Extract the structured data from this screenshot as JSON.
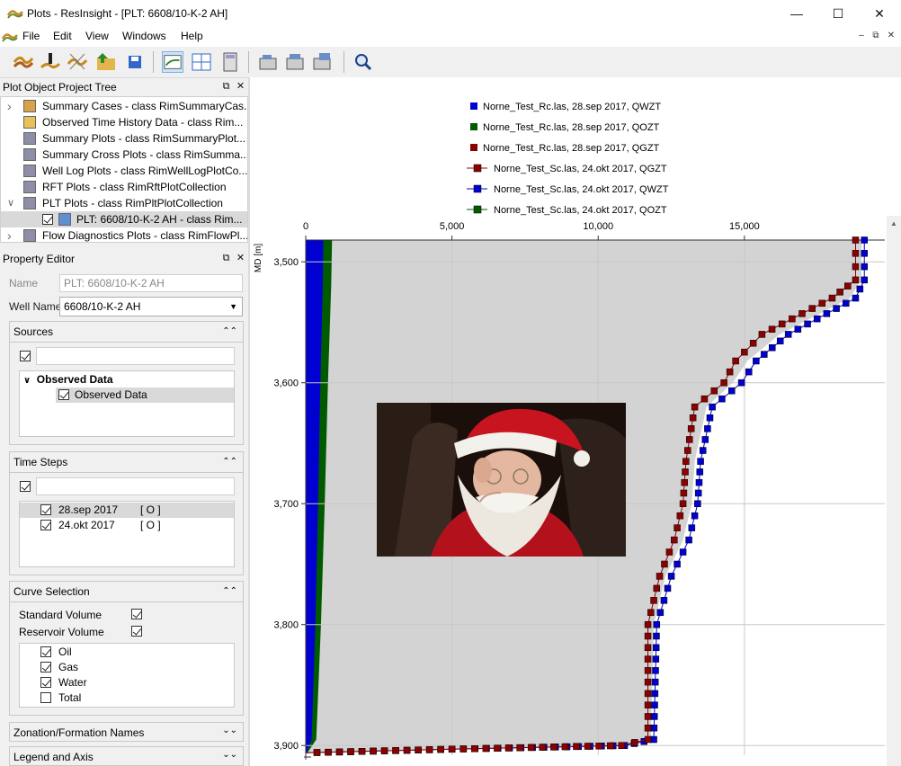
{
  "window": {
    "title": "Plots - ResInsight - [PLT: 6608/10-K-2 AH]"
  },
  "menu": {
    "items": [
      "File",
      "Edit",
      "View",
      "Windows",
      "Help"
    ]
  },
  "project_tree": {
    "title": "Plot Object Project Tree",
    "rows": [
      {
        "label": "Summary Cases - class RimSummaryCas...",
        "arrow": ">"
      },
      {
        "label": "Observed Time History Data - class Rim...",
        "arrow": ""
      },
      {
        "label": "Summary Plots - class RimSummaryPlot...",
        "arrow": ""
      },
      {
        "label": "Summary Cross Plots - class RimSumma...",
        "arrow": ""
      },
      {
        "label": "Well Log Plots - class RimWellLogPlotCo...",
        "arrow": ""
      },
      {
        "label": "RFT Plots - class RimRftPlotCollection",
        "arrow": ""
      },
      {
        "label": "PLT Plots - class RimPltPlotCollection",
        "arrow": "v"
      },
      {
        "label": "PLT: 6608/10-K-2 AH - class Rim...",
        "arrow": ""
      },
      {
        "label": "Flow Diagnostics Plots - class RimFlowPl...",
        "arrow": ">"
      }
    ]
  },
  "property_editor": {
    "title": "Property Editor",
    "name_label": "Name",
    "name_value": "PLT: 6608/10-K-2 AH",
    "well_label": "Well Name",
    "well_value": "6608/10-K-2 AH",
    "sources": {
      "title": "Sources",
      "filter": "",
      "group_label": "Observed Data",
      "item_label": "Observed Data"
    },
    "time_steps": {
      "title": "Time Steps",
      "filter": "",
      "items": [
        {
          "date": "28.sep 2017",
          "flag": "[ O ]"
        },
        {
          "date": "24.okt 2017",
          "flag": "[ O ]"
        }
      ]
    },
    "curve_selection": {
      "title": "Curve Selection",
      "standard_volume": "Standard Volume",
      "reservoir_volume": "Reservoir Volume",
      "phases": [
        {
          "label": "Oil",
          "checked": true
        },
        {
          "label": "Gas",
          "checked": true
        },
        {
          "label": "Water",
          "checked": true
        },
        {
          "label": "Total",
          "checked": false
        }
      ]
    },
    "zonation_title": "Zonation/Formation Names",
    "legend_title": "Legend and Axis"
  },
  "colors": {
    "qwzt": "#0000d0",
    "qozt": "#005a00",
    "qgzt": "#8b0000",
    "fill": "#d3d3d3"
  },
  "chart_data": {
    "type": "area",
    "legend": [
      {
        "label": "Norne_Test_Rc.las, 28.sep 2017, QWZT",
        "color": "#0000d0",
        "style": "fill"
      },
      {
        "label": "Norne_Test_Rc.las, 28.sep 2017, QOZT",
        "color": "#005a00",
        "style": "fill"
      },
      {
        "label": "Norne_Test_Rc.las, 28.sep 2017, QGZT",
        "color": "#8b0000",
        "style": "fill"
      },
      {
        "label": "Norne_Test_Sc.las, 24.okt 2017, QGZT",
        "color": "#8b0000",
        "style": "marker"
      },
      {
        "label": "Norne_Test_Sc.las, 24.okt 2017, QWZT",
        "color": "#0000d0",
        "style": "marker"
      },
      {
        "label": "Norne_Test_Sc.las, 24.okt 2017, QOZT",
        "color": "#005a00",
        "style": "marker"
      }
    ],
    "xlim": [
      0,
      19800
    ],
    "ylim": [
      3482,
      3908
    ],
    "x_ticks": [
      "0",
      "5,000",
      "10,000",
      "15,000"
    ],
    "x_tick_values": [
      0,
      5000,
      10000,
      15000
    ],
    "y_ticks": [
      "3,500",
      "3,600",
      "3,700",
      "3,800",
      "3,900"
    ],
    "y_tick_values": [
      3500,
      3600,
      3700,
      3800,
      3900
    ],
    "ylabel": "MD [m]",
    "water_band": [
      {
        "md": 3482,
        "v": 600
      },
      {
        "md": 3520,
        "v": 580
      },
      {
        "md": 3600,
        "v": 500
      },
      {
        "md": 3700,
        "v": 420
      },
      {
        "md": 3800,
        "v": 330
      },
      {
        "md": 3895,
        "v": 200
      },
      {
        "md": 3906,
        "v": 30
      }
    ],
    "oil_band": [
      {
        "md": 3482,
        "v": 900
      },
      {
        "md": 3520,
        "v": 870
      },
      {
        "md": 3600,
        "v": 760
      },
      {
        "md": 3700,
        "v": 650
      },
      {
        "md": 3800,
        "v": 520
      },
      {
        "md": 3895,
        "v": 360
      },
      {
        "md": 3906,
        "v": 60
      }
    ],
    "total_curve": [
      {
        "md": 3482,
        "v": 19000
      },
      {
        "md": 3515,
        "v": 19000
      },
      {
        "md": 3530,
        "v": 18600
      },
      {
        "md": 3560,
        "v": 16200
      },
      {
        "md": 3582,
        "v": 15100
      },
      {
        "md": 3600,
        "v": 14600
      },
      {
        "md": 3620,
        "v": 13700
      },
      {
        "md": 3665,
        "v": 13300
      },
      {
        "md": 3700,
        "v": 13200
      },
      {
        "md": 3730,
        "v": 12900
      },
      {
        "md": 3760,
        "v": 12300
      },
      {
        "md": 3800,
        "v": 11900
      },
      {
        "md": 3895,
        "v": 11800
      },
      {
        "md": 3900,
        "v": 10800
      },
      {
        "md": 3903,
        "v": 5000
      },
      {
        "md": 3906,
        "v": 0
      }
    ],
    "gas_marker_curve": [
      {
        "md": 3482,
        "v": 18800
      },
      {
        "md": 3515,
        "v": 18800
      },
      {
        "md": 3530,
        "v": 18000
      },
      {
        "md": 3560,
        "v": 15600
      },
      {
        "md": 3582,
        "v": 14700
      },
      {
        "md": 3600,
        "v": 14300
      },
      {
        "md": 3620,
        "v": 13300
      },
      {
        "md": 3665,
        "v": 13000
      },
      {
        "md": 3700,
        "v": 12900
      },
      {
        "md": 3730,
        "v": 12600
      },
      {
        "md": 3760,
        "v": 12100
      },
      {
        "md": 3800,
        "v": 11700
      },
      {
        "md": 3895,
        "v": 11700
      },
      {
        "md": 3900,
        "v": 10800
      },
      {
        "md": 3903,
        "v": 5000
      },
      {
        "md": 3906,
        "v": 0
      }
    ],
    "water_marker_curve": [
      {
        "md": 3482,
        "v": 19100
      },
      {
        "md": 3515,
        "v": 19100
      },
      {
        "md": 3530,
        "v": 18800
      },
      {
        "md": 3560,
        "v": 16500
      },
      {
        "md": 3582,
        "v": 15400
      },
      {
        "md": 3600,
        "v": 14900
      },
      {
        "md": 3620,
        "v": 13900
      },
      {
        "md": 3665,
        "v": 13500
      },
      {
        "md": 3700,
        "v": 13400
      },
      {
        "md": 3730,
        "v": 13100
      },
      {
        "md": 3760,
        "v": 12500
      },
      {
        "md": 3800,
        "v": 12000
      },
      {
        "md": 3895,
        "v": 11900
      },
      {
        "md": 3900,
        "v": 10900
      },
      {
        "md": 3903,
        "v": 5000
      },
      {
        "md": 3906,
        "v": 0
      }
    ]
  }
}
